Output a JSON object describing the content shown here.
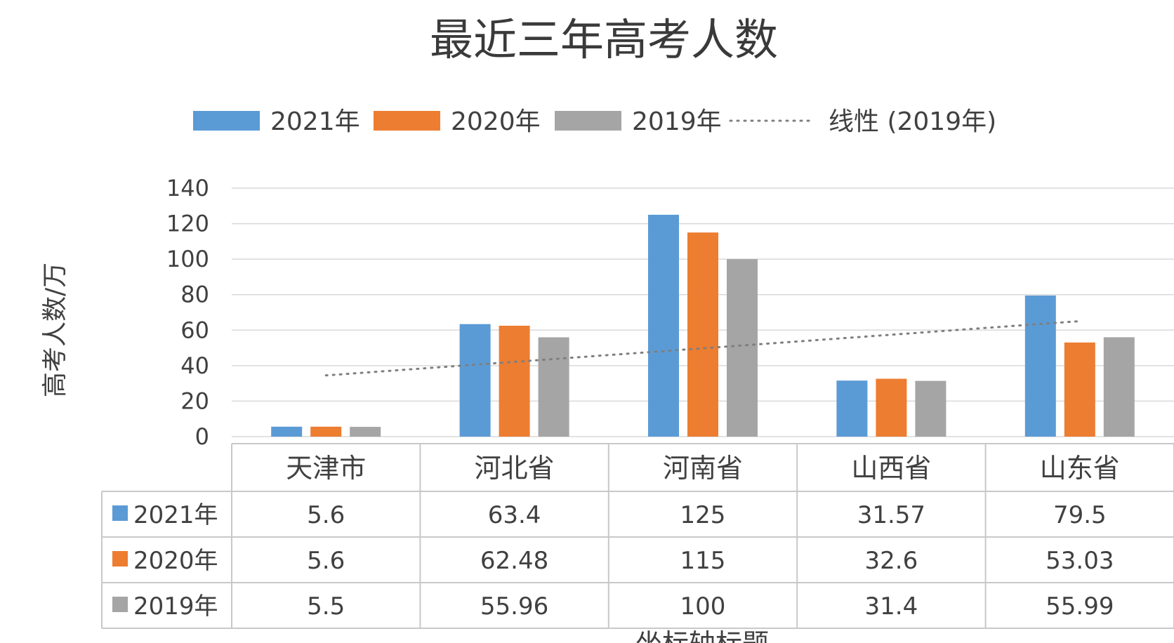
{
  "chart_data": {
    "type": "bar",
    "title": "最近三年高考人数",
    "ylabel": "高考人数/万",
    "xlabel": "坐标轴标题",
    "ylim": [
      0,
      140
    ],
    "yticks": [
      "0",
      "20",
      "40",
      "60",
      "80",
      "100",
      "120",
      "140"
    ],
    "categories": [
      "天津市",
      "河北省",
      "河南省",
      "山西省",
      "山东省"
    ],
    "series": [
      {
        "name": "2021年",
        "color": "#5b9bd5",
        "values": [
          5.6,
          63.4,
          125,
          31.57,
          79.5
        ],
        "labels": [
          "5.6",
          "63.4",
          "125",
          "31.57",
          "79.5"
        ]
      },
      {
        "name": "2020年",
        "color": "#ed7d31",
        "values": [
          5.6,
          62.48,
          115,
          32.6,
          53.03
        ],
        "labels": [
          "5.6",
          "62.48",
          "115",
          "32.6",
          "53.03"
        ]
      },
      {
        "name": "2019年",
        "color": "#a5a5a5",
        "values": [
          5.5,
          55.96,
          100,
          31.4,
          55.99
        ],
        "labels": [
          "5.5",
          "55.96",
          "100",
          "31.4",
          "55.99"
        ]
      }
    ],
    "trendline": {
      "name": "线性 (2019年)",
      "series": "2019年",
      "type": "linear",
      "color": "#7f7f7f"
    },
    "legend_position": "top",
    "grid": true,
    "data_table": true
  }
}
